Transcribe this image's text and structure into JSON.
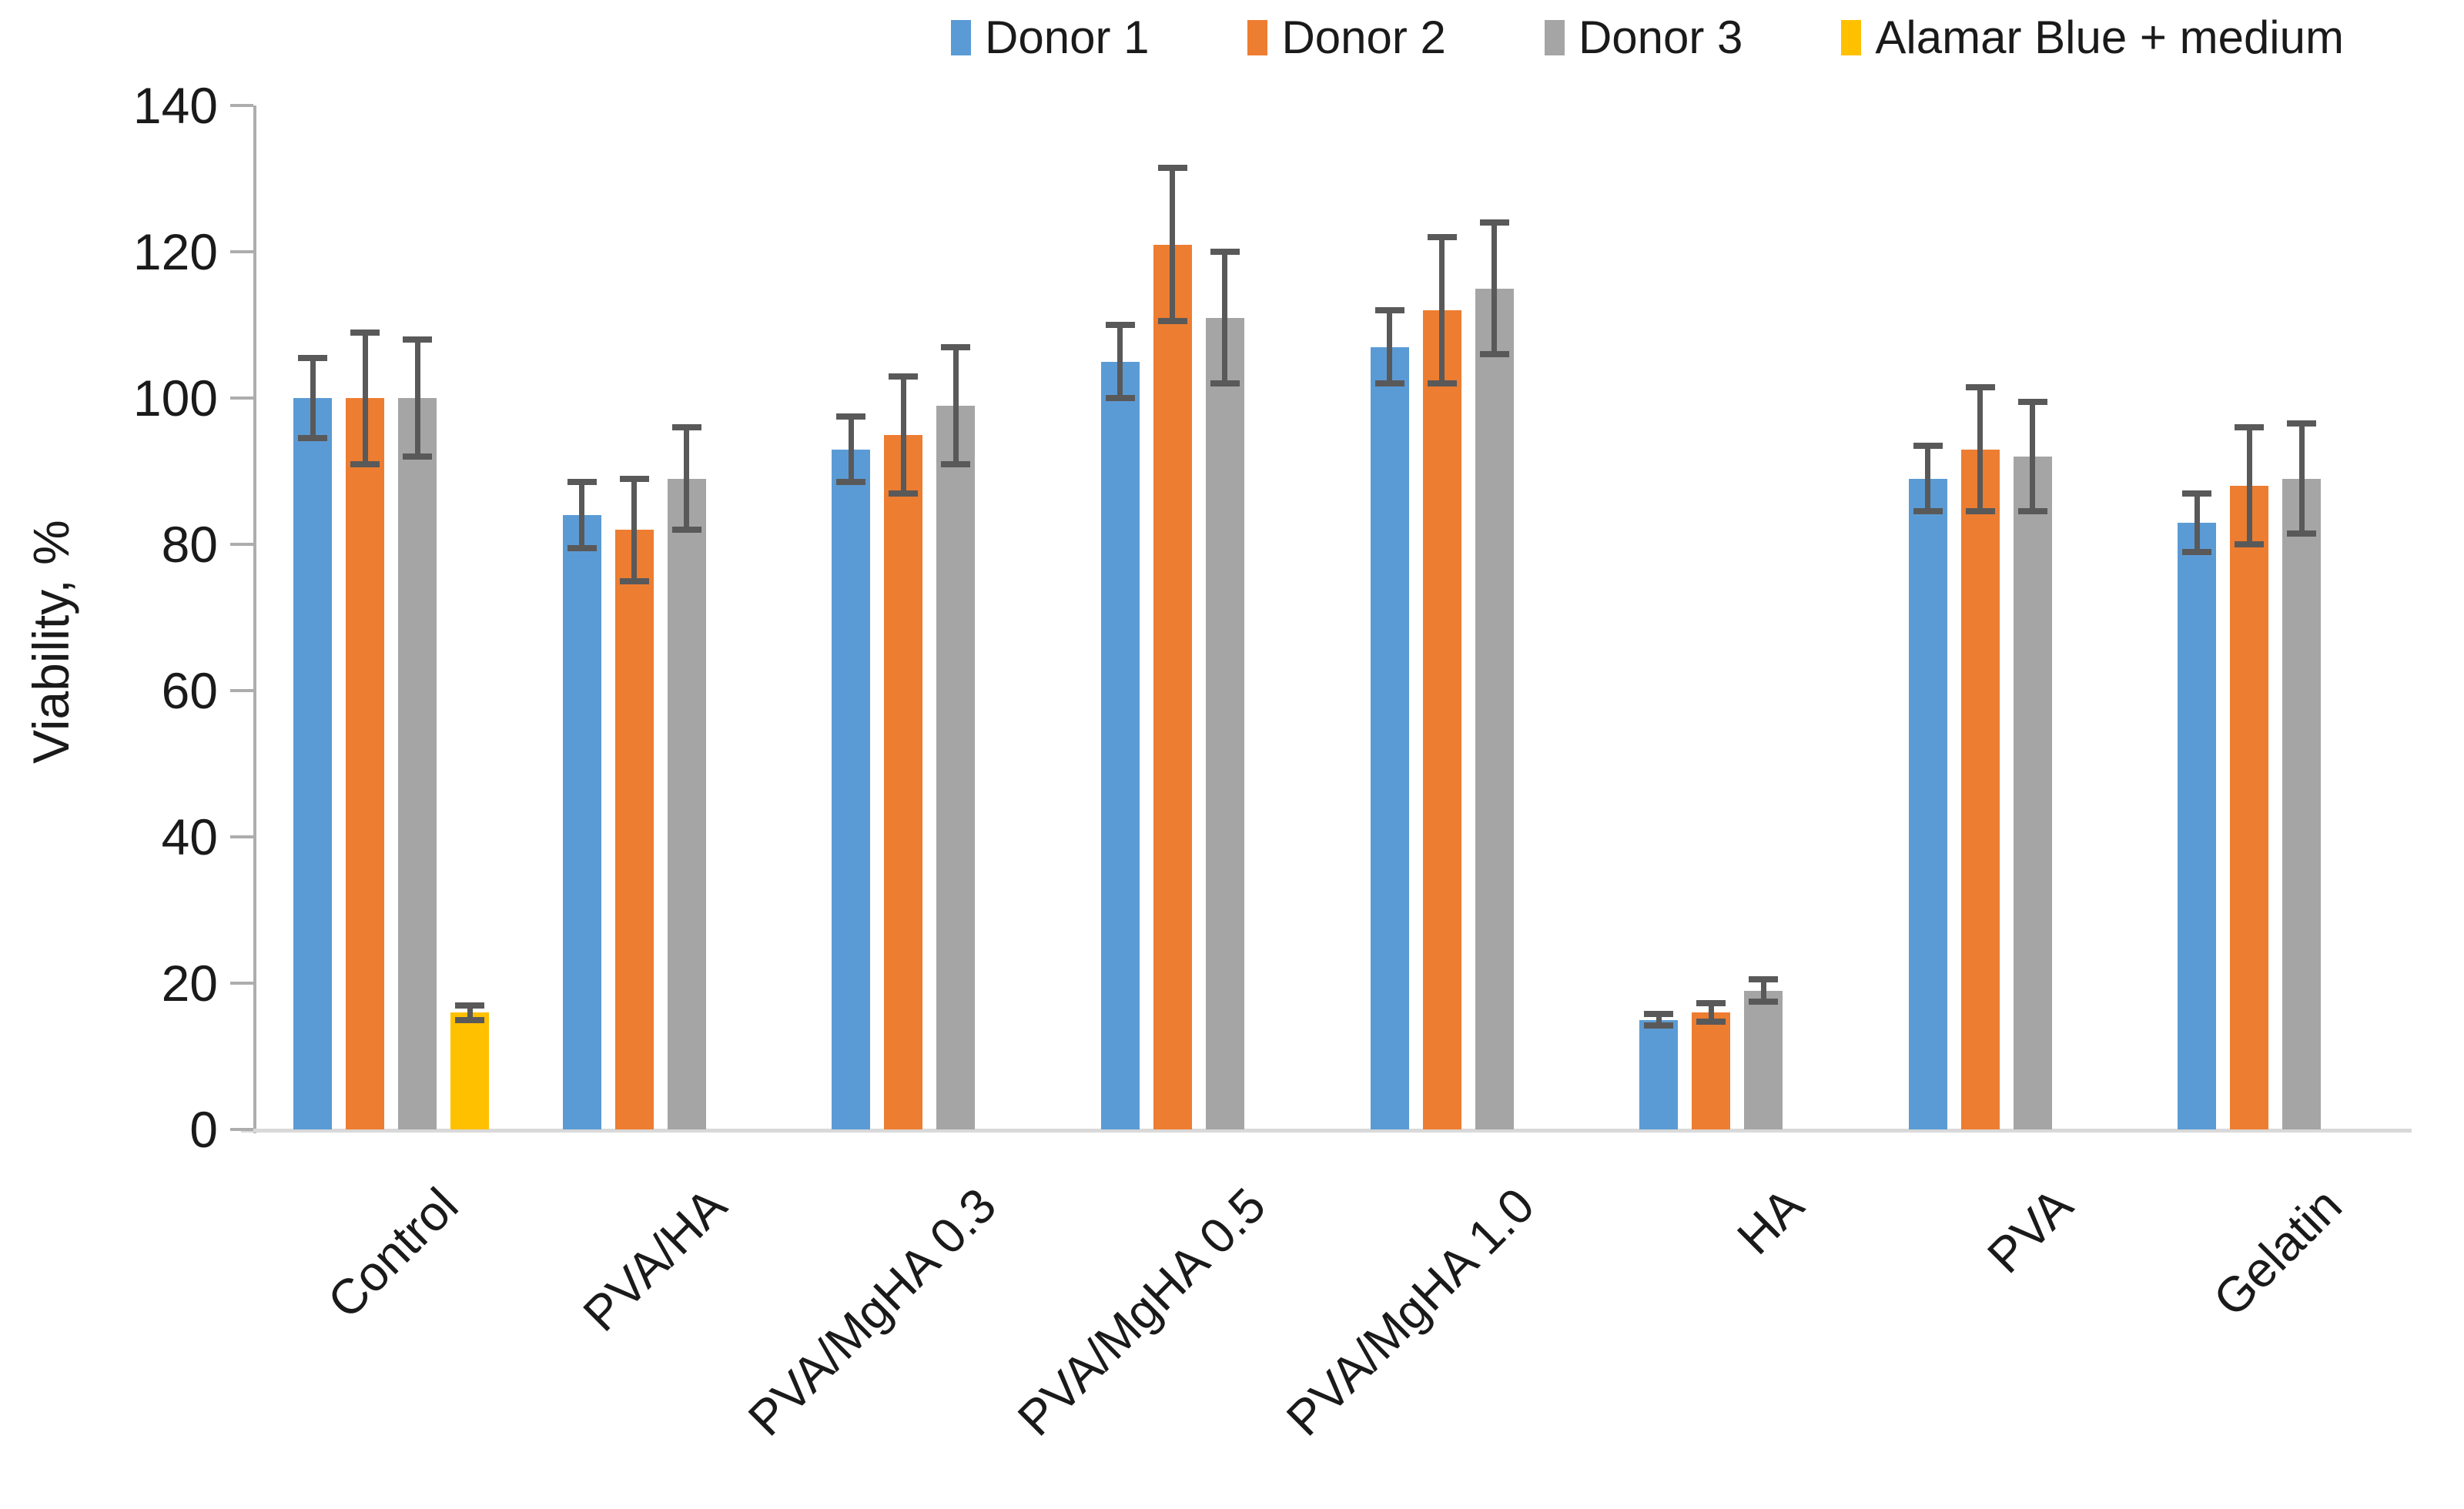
{
  "chart_data": {
    "type": "bar",
    "title": "",
    "xlabel": "",
    "ylabel": "Viability, %",
    "ylim": [
      0,
      140
    ],
    "ytick_step": 20,
    "ytick_labels": [
      "0",
      "20",
      "40",
      "60",
      "80",
      "100",
      "120",
      "140"
    ],
    "grid": false,
    "legend_position": "top-right",
    "categories": [
      "Control",
      "PVA/HA",
      "PVA/MgHA 0.3",
      "PVA/MgHA 0.5",
      "PVA/MgHA 1.0",
      "HA",
      "PVA",
      "Gelatin"
    ],
    "series": [
      {
        "name": "Donor 1",
        "color": "#5B9BD5",
        "values": [
          100,
          84,
          93,
          105,
          107,
          15,
          89,
          83
        ],
        "errors": [
          5.5,
          4.5,
          4.5,
          5,
          5,
          0.8,
          4.5,
          4
        ]
      },
      {
        "name": "Donor 2",
        "color": "#ED7D31",
        "values": [
          100,
          82,
          95,
          121,
          112,
          16,
          93,
          88
        ],
        "errors": [
          9,
          7,
          8,
          10.5,
          10,
          1.3,
          8.5,
          8
        ]
      },
      {
        "name": "Donor 3",
        "color": "#A5A5A5",
        "values": [
          100,
          89,
          99,
          111,
          115,
          19,
          92,
          89
        ],
        "errors": [
          8,
          7,
          8,
          9,
          9,
          1.5,
          7.5,
          7.5
        ]
      },
      {
        "name": "Alamar Blue + medium",
        "color": "#FFC000",
        "values": [
          16,
          null,
          null,
          null,
          null,
          null,
          null,
          null
        ],
        "errors": [
          1,
          null,
          null,
          null,
          null,
          null,
          null,
          null
        ]
      }
    ],
    "error_bar_color": "#595959",
    "y_axis_color": "#ADADAD",
    "x_axis_color": "#D9D9D9"
  }
}
